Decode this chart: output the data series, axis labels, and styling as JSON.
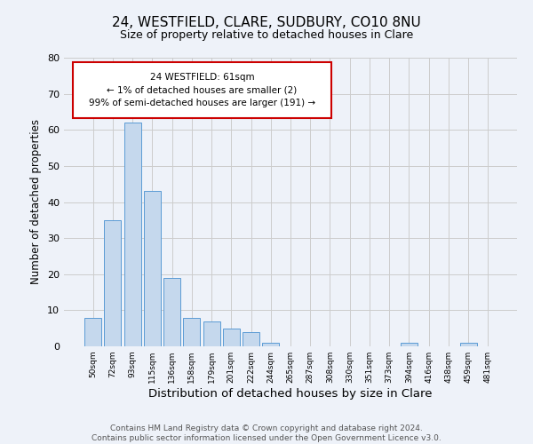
{
  "title": "24, WESTFIELD, CLARE, SUDBURY, CO10 8NU",
  "subtitle": "Size of property relative to detached houses in Clare",
  "xlabel": "Distribution of detached houses by size in Clare",
  "ylabel": "Number of detached properties",
  "categories": [
    "50sqm",
    "72sqm",
    "93sqm",
    "115sqm",
    "136sqm",
    "158sqm",
    "179sqm",
    "201sqm",
    "222sqm",
    "244sqm",
    "265sqm",
    "287sqm",
    "308sqm",
    "330sqm",
    "351sqm",
    "373sqm",
    "394sqm",
    "416sqm",
    "438sqm",
    "459sqm",
    "481sqm"
  ],
  "values": [
    8,
    35,
    62,
    43,
    19,
    8,
    7,
    5,
    4,
    1,
    0,
    0,
    0,
    0,
    0,
    0,
    1,
    0,
    0,
    1,
    0
  ],
  "bar_color": "#c5d8ed",
  "bar_edge_color": "#5b9bd5",
  "annotation_box_text": "24 WESTFIELD: 61sqm\n← 1% of detached houses are smaller (2)\n99% of semi-detached houses are larger (191) →",
  "annotation_edge_color": "#cc0000",
  "annotation_text_color": "#000000",
  "ylim": [
    0,
    80
  ],
  "yticks": [
    0,
    10,
    20,
    30,
    40,
    50,
    60,
    70,
    80
  ],
  "grid_color": "#cccccc",
  "background_color": "#eef2f9",
  "footer_text": "Contains HM Land Registry data © Crown copyright and database right 2024.\nContains public sector information licensed under the Open Government Licence v3.0.",
  "title_fontsize": 11,
  "subtitle_fontsize": 9,
  "xlabel_fontsize": 9.5,
  "ylabel_fontsize": 8.5,
  "footer_fontsize": 6.5
}
